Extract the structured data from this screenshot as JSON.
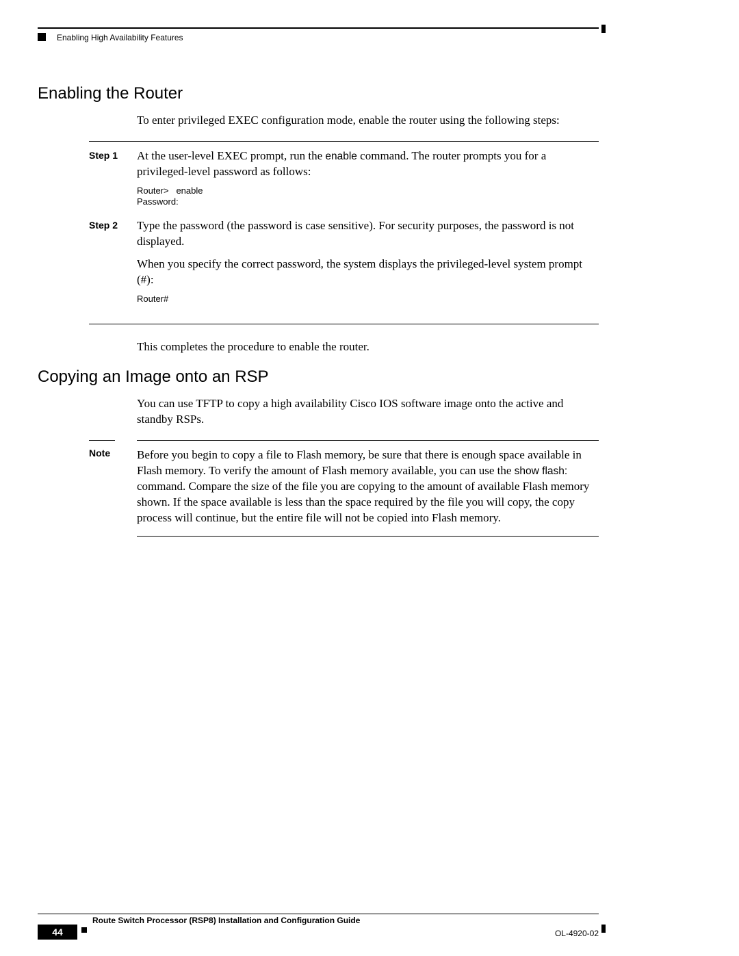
{
  "header": {
    "breadcrumb": "Enabling High Availability Features"
  },
  "section1": {
    "title": "Enabling the Router",
    "intro": "To enter privileged EXEC configuration mode, enable the router using the following steps:",
    "steps": [
      {
        "label": "Step 1",
        "text_before_cmd": "At the user-level EXEC prompt, run the ",
        "cmd": "enable",
        "text_after_cmd": " command. The router prompts you for a privileged-level password as follows:",
        "code": "Router>   enable\nPassword:"
      },
      {
        "label": "Step 2",
        "para1": "Type the password (the password is case sensitive). For security purposes, the password is not displayed.",
        "para2": "When you specify the correct password, the system displays the privileged-level system prompt (#):",
        "code": "Router#"
      }
    ],
    "outro": "This completes the procedure to enable the router."
  },
  "section2": {
    "title": "Copying an Image onto an RSP",
    "intro": "You can use TFTP to copy a high availability Cisco IOS software image onto the active and standby RSPs.",
    "note_label": "Note",
    "note_before_cmd": "Before you begin to copy a file to Flash memory, be sure that there is enough space available in Flash memory. To verify the amount of Flash memory available, you can use the ",
    "note_cmd": "show flash:",
    "note_after_cmd": " command. Compare the size of the file you are copying to the amount of available Flash memory shown. If the space available is less than the space required by the file you will copy, the copy process will continue, but the entire file will not be copied into Flash memory."
  },
  "footer": {
    "guide_title": "Route Switch Processor (RSP8) Installation and Configuration Guide",
    "page_number": "44",
    "doc_id": "OL-4920-02"
  }
}
